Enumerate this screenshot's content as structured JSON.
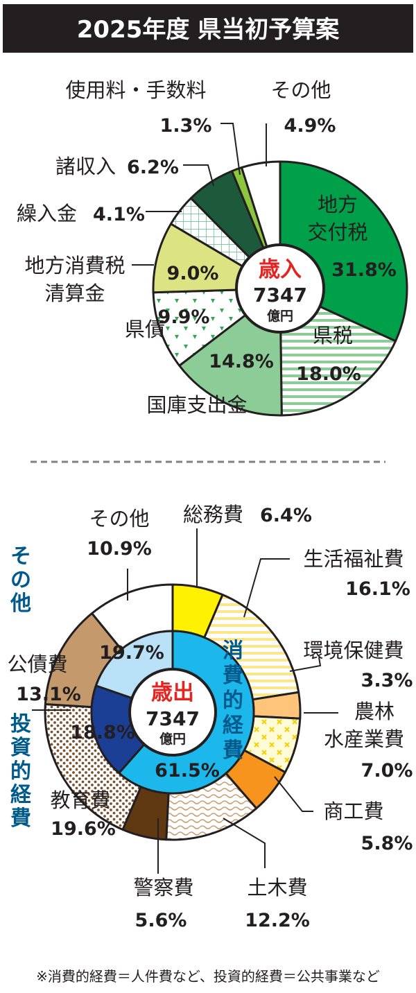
{
  "title": "2025年度 県当初予算案",
  "footnote": "※消費的経費＝人件費など、投資的経費＝公共事業など",
  "chart_data": [
    {
      "type": "pie",
      "center_label": "歳入",
      "center_value": "7347",
      "center_unit": "億円",
      "slices": [
        {
          "label": "地方交付税",
          "label_lines": [
            "地方",
            "交付税"
          ],
          "value": 31.8,
          "value_label": "31.8%",
          "color": "#00a04a",
          "pattern": "solid"
        },
        {
          "label": "県税",
          "label_lines": [
            "県税"
          ],
          "value": 18.0,
          "value_label": "18.0%",
          "color": "#ffffff",
          "pattern": "hstripe-green"
        },
        {
          "label": "国庫支出金",
          "label_lines": [
            "国庫支出金"
          ],
          "value": 14.8,
          "value_label": "14.8%",
          "color": "#8ccc96",
          "pattern": "solid"
        },
        {
          "label": "県債",
          "label_lines": [
            "県債"
          ],
          "value": 9.9,
          "value_label": "9.9%",
          "color": "#ffffff",
          "pattern": "triangles-green"
        },
        {
          "label": "地方消費税清算金",
          "label_lines": [
            "地方消費税",
            "清算金"
          ],
          "value": 9.0,
          "value_label": "9.0%",
          "color": "#dbe383",
          "pattern": "solid"
        },
        {
          "label": "繰入金",
          "label_lines": [
            "繰入金"
          ],
          "value": 4.1,
          "value_label": "4.1%",
          "color": "#ffffff",
          "pattern": "grid-green"
        },
        {
          "label": "諸収入",
          "label_lines": [
            "諸収入"
          ],
          "value": 6.2,
          "value_label": "6.2%",
          "color": "#1c5a3b",
          "pattern": "solid"
        },
        {
          "label": "使用料・手数料",
          "label_lines": [
            "使用料・手数料"
          ],
          "value": 1.3,
          "value_label": "1.3%",
          "color": "#8cc63f",
          "pattern": "solid"
        },
        {
          "label": "その他",
          "label_lines": [
            "その他"
          ],
          "value": 4.9,
          "value_label": "4.9%",
          "color": "#ffffff",
          "pattern": "solid"
        }
      ]
    },
    {
      "type": "pie",
      "center_label": "歳出",
      "center_value": "7347",
      "center_unit": "億円",
      "outer": [
        {
          "label": "総務費",
          "label_lines": [
            "総務費"
          ],
          "value": 6.4,
          "value_label": "6.4%",
          "color": "#fff200",
          "pattern": "solid"
        },
        {
          "label": "生活福祉費",
          "label_lines": [
            "生活福祉費"
          ],
          "value": 16.1,
          "value_label": "16.1%",
          "color": "#ffffff",
          "pattern": "hstripe-yellow"
        },
        {
          "label": "環境保健費",
          "label_lines": [
            "環境保健費"
          ],
          "value": 3.3,
          "value_label": "3.3%",
          "color": "#fdc47a",
          "pattern": "solid"
        },
        {
          "label": "農林水産業費",
          "label_lines": [
            "農林",
            "水産業費"
          ],
          "value": 7.0,
          "value_label": "7.0%",
          "color": "#fff8c4",
          "pattern": "cross-yellow"
        },
        {
          "label": "商工費",
          "label_lines": [
            "商工費"
          ],
          "value": 5.8,
          "value_label": "5.8%",
          "color": "#f7941d",
          "pattern": "solid"
        },
        {
          "label": "土木費",
          "label_lines": [
            "土木費"
          ],
          "value": 12.2,
          "value_label": "12.2%",
          "color": "#ffffff",
          "pattern": "wave-brown"
        },
        {
          "label": "警察費",
          "label_lines": [
            "警察費"
          ],
          "value": 5.6,
          "value_label": "5.6%",
          "color": "#603913",
          "pattern": "solid"
        },
        {
          "label": "教育費",
          "label_lines": [
            "教育費"
          ],
          "value": 19.6,
          "value_label": "19.6%",
          "color": "#ffffff",
          "pattern": "dots-brown"
        },
        {
          "label": "公債費",
          "label_lines": [
            "公債費"
          ],
          "value": 13.1,
          "value_label": "13.1%",
          "color": "#c49a6c",
          "pattern": "solid"
        },
        {
          "label": "その他",
          "label_lines": [
            "その他"
          ],
          "value": 10.9,
          "value_label": "10.9%",
          "color": "#ffffff",
          "pattern": "solid"
        }
      ],
      "inner": [
        {
          "label": "消費的経費",
          "value": 61.5,
          "value_label": "61.5%",
          "color": "#1cb8ec"
        },
        {
          "label": "投資的経費",
          "value": 18.8,
          "value_label": "18.8%",
          "color": "#1b3f95"
        },
        {
          "label": "その他",
          "value": 19.7,
          "value_label": "19.7%",
          "color": "#b8e0f6"
        }
      ],
      "side_labels": {
        "consumption": "消費的経費",
        "investment": "投資的経費",
        "other": "その他"
      }
    }
  ]
}
